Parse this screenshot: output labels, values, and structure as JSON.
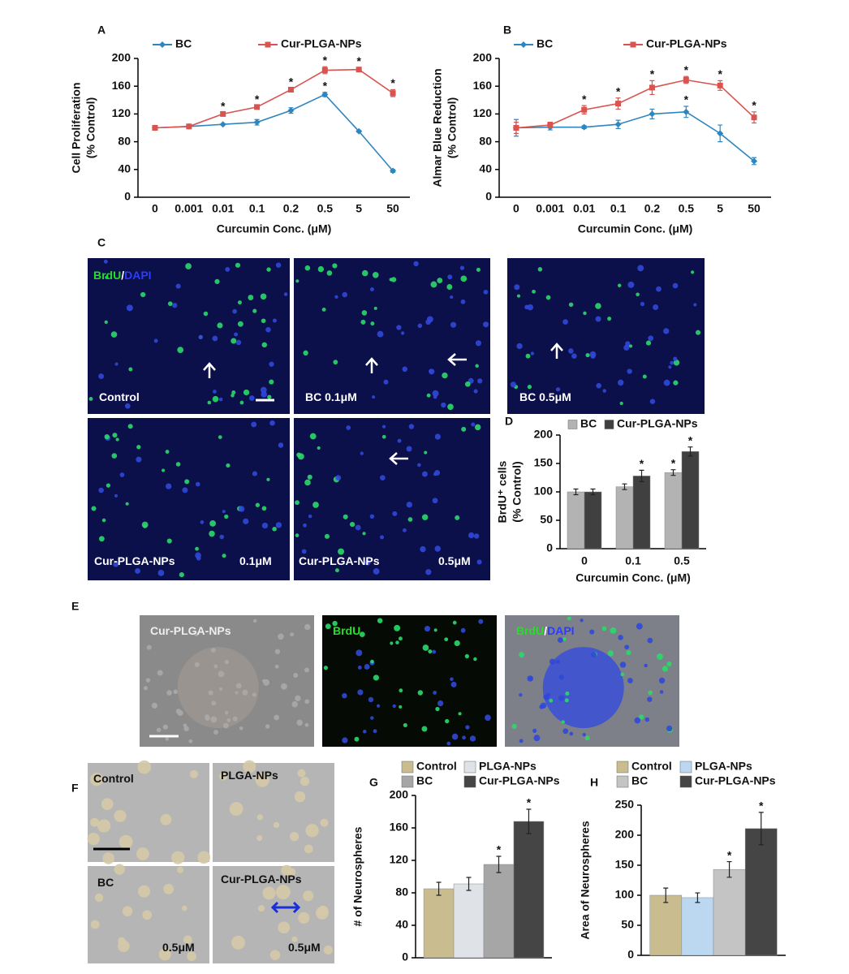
{
  "panel_labels": [
    "A",
    "B",
    "C",
    "D",
    "E",
    "F",
    "G",
    "H"
  ],
  "chart_data": [
    {
      "type": "line",
      "xlabel": "Curcumin Conc. (μM)",
      "ylabel": [
        "Cell Proliferation",
        "(% Control)"
      ],
      "categories": [
        "0",
        "0.001",
        "0.01",
        "0.1",
        "0.2",
        "0.5",
        "5",
        "50"
      ],
      "ylim": [
        0,
        200
      ],
      "yticks": [
        0,
        40,
        80,
        120,
        160,
        200
      ],
      "series": [
        {
          "name": "BC",
          "color": "#2e86c1",
          "marker": "diamond",
          "values": [
            100,
            102,
            105,
            108,
            125,
            148,
            95,
            38
          ],
          "errors": [
            3,
            1,
            1,
            4,
            4,
            3,
            1,
            2
          ],
          "stars": [
            null,
            null,
            null,
            null,
            null,
            "*",
            null,
            null
          ]
        },
        {
          "name": "Cur-PLGA-NPs",
          "color": "#d9534f",
          "marker": "square",
          "values": [
            100,
            102,
            120,
            130,
            155,
            183,
            184,
            150
          ],
          "errors": [
            3,
            1,
            2,
            2,
            2,
            5,
            3,
            5
          ],
          "stars": [
            null,
            null,
            "*",
            "*",
            "*",
            "*",
            "*",
            "*"
          ]
        }
      ]
    },
    {
      "type": "line",
      "xlabel": "Curcumin Conc. (μM)",
      "ylabel": [
        "Almar Blue Reduction",
        "(% Control)"
      ],
      "categories": [
        "0",
        "0.001",
        "0.01",
        "0.1",
        "0.2",
        "0.5",
        "5",
        "50"
      ],
      "ylim": [
        0,
        200
      ],
      "yticks": [
        0,
        40,
        80,
        120,
        160,
        200
      ],
      "series": [
        {
          "name": "BC",
          "color": "#2e86c1",
          "marker": "diamond",
          "values": [
            100,
            101,
            101,
            105,
            120,
            123,
            92,
            52
          ],
          "errors": [
            12,
            4,
            2,
            6,
            7,
            8,
            12,
            5
          ],
          "stars": [
            null,
            null,
            null,
            null,
            null,
            "*",
            null,
            null
          ]
        },
        {
          "name": "Cur-PLGA-NPs",
          "color": "#d9534f",
          "marker": "square",
          "values": [
            100,
            104,
            126,
            135,
            158,
            169,
            161,
            115
          ],
          "errors": [
            8,
            4,
            6,
            8,
            10,
            5,
            7,
            8
          ],
          "stars": [
            null,
            null,
            "*",
            "*",
            "*",
            "*",
            "*",
            "*"
          ]
        }
      ]
    },
    {
      "type": "bar",
      "xlabel": "Curcumin Conc. (μM)",
      "ylabel": [
        "BrdU⁺ cells",
        "(% Control)"
      ],
      "categories": [
        "0",
        "0.1",
        "0.5"
      ],
      "ylim": [
        0,
        200
      ],
      "yticks": [
        0,
        50,
        100,
        150,
        200
      ],
      "series": [
        {
          "name": "BC",
          "color": "#b3b3b3",
          "values": [
            100,
            109,
            134
          ],
          "errors": [
            5,
            5,
            5
          ],
          "stars": [
            null,
            null,
            "*"
          ]
        },
        {
          "name": "Cur-PLGA-NPs",
          "color": "#404040",
          "values": [
            100,
            128,
            171
          ],
          "errors": [
            5,
            10,
            8
          ],
          "stars": [
            null,
            "*",
            "*"
          ]
        }
      ]
    },
    {
      "type": "bar",
      "ylabel": [
        "# of Neurospheres"
      ],
      "categories": [
        null
      ],
      "ylim": [
        0,
        200
      ],
      "yticks": [
        0,
        40,
        80,
        120,
        160,
        200
      ],
      "series": [
        {
          "name": "Control",
          "color": "#c9bd8f",
          "values": [
            85
          ],
          "errors": [
            8
          ],
          "stars": [
            null
          ]
        },
        {
          "name": "PLGA-NPs",
          "color": "#dfe3e8",
          "values": [
            91
          ],
          "errors": [
            8
          ],
          "stars": [
            null
          ]
        },
        {
          "name": "BC",
          "color": "#a6a6a6",
          "values": [
            115
          ],
          "errors": [
            10
          ],
          "stars": [
            "*"
          ]
        },
        {
          "name": "Cur-PLGA-NPs",
          "color": "#454545",
          "values": [
            168
          ],
          "errors": [
            15
          ],
          "stars": [
            "*"
          ]
        }
      ]
    },
    {
      "type": "bar",
      "ylabel": [
        "Area of Neurospheres"
      ],
      "categories": [
        null
      ],
      "ylim": [
        0,
        250
      ],
      "yticks": [
        0,
        50,
        100,
        150,
        200,
        250
      ],
      "series": [
        {
          "name": "Control",
          "color": "#c9bd8f",
          "values": [
            100
          ],
          "errors": [
            12
          ],
          "stars": [
            null
          ]
        },
        {
          "name": "PLGA-NPs",
          "color": "#bcd8f0",
          "values": [
            96
          ],
          "errors": [
            8
          ],
          "stars": [
            null
          ]
        },
        {
          "name": "BC",
          "color": "#c4c4c4",
          "values": [
            143
          ],
          "errors": [
            13
          ],
          "stars": [
            "*"
          ]
        },
        {
          "name": "Cur-PLGA-NPs",
          "color": "#454545",
          "values": [
            211
          ],
          "errors": [
            27
          ],
          "stars": [
            "*"
          ]
        }
      ]
    }
  ],
  "images": [
    {
      "labels": [
        [
          {
            "text": "BrdU",
            "color": "#22e022"
          },
          {
            "text": "/",
            "color": "#ffffff"
          },
          {
            "text": "DAPI",
            "color": "#2a3cff"
          }
        ],
        [
          {
            "text": "Control",
            "color": "#ffffff"
          }
        ]
      ]
    },
    {
      "labels": [
        [
          {
            "text": "BC 0.1μM",
            "color": "#ffffff"
          }
        ]
      ]
    },
    {
      "labels": [
        [
          {
            "text": "BC 0.5μM",
            "color": "#ffffff"
          }
        ]
      ]
    },
    {
      "labels": [
        [
          {
            "text": "Cur-PLGA-NPs",
            "color": "#ffffff"
          }
        ],
        [
          {
            "text": "0.1μM",
            "color": "#ffffff"
          }
        ]
      ]
    },
    {
      "labels": [
        [
          {
            "text": "Cur-PLGA-NPs",
            "color": "#ffffff"
          }
        ],
        [
          {
            "text": "0.5μM",
            "color": "#ffffff"
          }
        ]
      ]
    },
    {
      "labels": [
        [
          {
            "text": "Cur-PLGA-NPs",
            "color": "#eeeeee"
          }
        ]
      ]
    },
    {
      "labels": [
        [
          {
            "text": "BrdU",
            "color": "#22e022"
          }
        ]
      ]
    },
    {
      "labels": [
        [
          {
            "text": "BrdU",
            "color": "#22e022"
          },
          {
            "text": "/",
            "color": "#ffffff"
          },
          {
            "text": "DAPI",
            "color": "#2a3cff"
          }
        ]
      ]
    },
    {
      "labels": [
        [
          {
            "text": "Control",
            "color": "#111111"
          }
        ]
      ]
    },
    {
      "labels": [
        [
          {
            "text": "PLGA-NPs",
            "color": "#111111"
          }
        ]
      ]
    },
    {
      "labels": [
        [
          {
            "text": "BC",
            "color": "#111111"
          }
        ],
        [
          {
            "text": "0.5μM",
            "color": "#111111"
          }
        ]
      ]
    },
    {
      "labels": [
        [
          {
            "text": "Cur-PLGA-NPs",
            "color": "#111111"
          }
        ],
        [
          {
            "text": "0.5μM",
            "color": "#111111"
          }
        ]
      ]
    }
  ]
}
